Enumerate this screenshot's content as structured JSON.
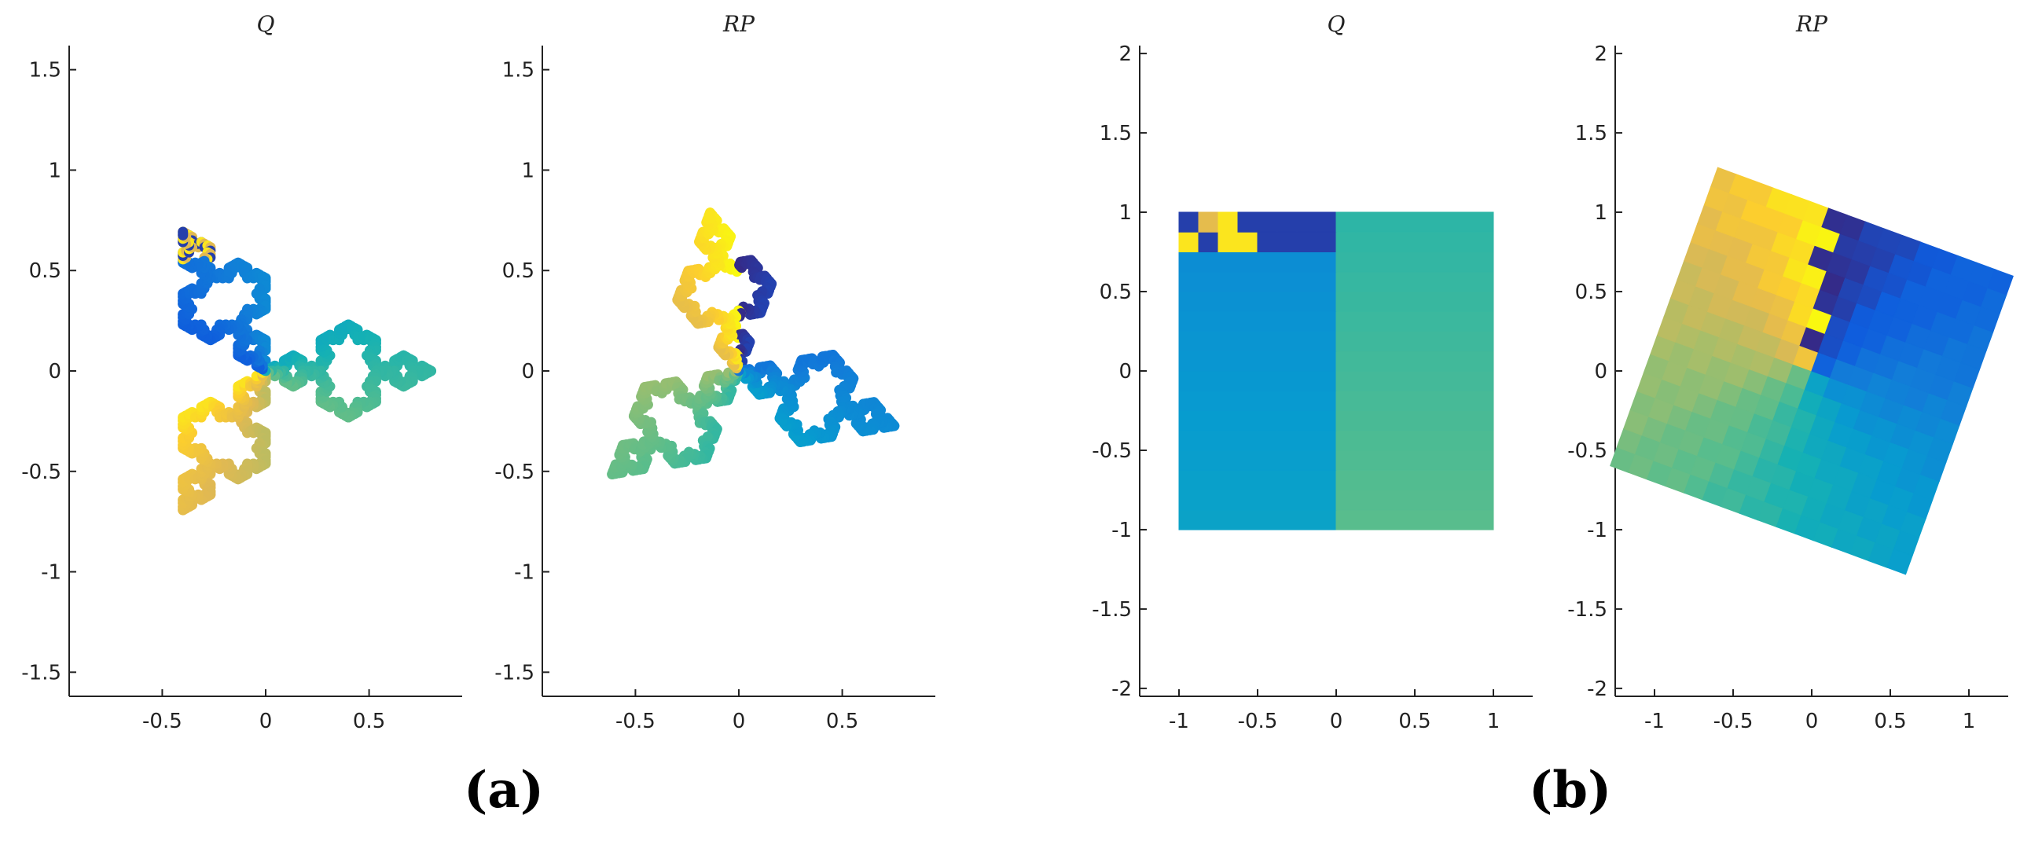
{
  "figure": {
    "captions": [
      "(a)",
      "(b)"
    ]
  },
  "chart_data": [
    {
      "type": "scatter",
      "panel": "a",
      "title": "Q",
      "xlabel": "",
      "ylabel": "",
      "xlim": [
        -0.95,
        0.95
      ],
      "ylim": [
        -1.62,
        1.62
      ],
      "xticks": [
        -0.5,
        0,
        0.5
      ],
      "xtick_labels": [
        "-0.5",
        "0",
        "0.5"
      ],
      "yticks": [
        -1.5,
        -1,
        -0.5,
        0,
        0.5,
        1,
        1.5
      ],
      "ytick_labels": [
        "-1.5",
        "-1",
        "-0.5",
        "0",
        "0.5",
        "1",
        "1.5"
      ],
      "shape": "koch-snowflake",
      "rotation_deg": 0,
      "colormap": "parula",
      "colormap_offset": 0.3,
      "scrambled_top_region": true,
      "grid": false,
      "legend": "none"
    },
    {
      "type": "scatter",
      "panel": "a",
      "title": "RP",
      "xlabel": "",
      "ylabel": "",
      "xlim": [
        -0.95,
        0.95
      ],
      "ylim": [
        -1.62,
        1.62
      ],
      "xticks": [
        -0.5,
        0,
        0.5
      ],
      "xtick_labels": [
        "-0.5",
        "0",
        "0.5"
      ],
      "yticks": [
        -1.5,
        -1,
        -0.5,
        0,
        0.5,
        1,
        1.5
      ],
      "ytick_labels": [
        "-1.5",
        "-1",
        "-0.5",
        "0",
        "0.5",
        "1",
        "1.5"
      ],
      "shape": "koch-snowflake",
      "rotation_deg": -20,
      "colormap": "parula",
      "colormap_offset": 0.0,
      "scrambled_top_region": false,
      "grid": false,
      "legend": "none"
    },
    {
      "type": "heatmap",
      "panel": "b",
      "title": "Q",
      "xlabel": "",
      "ylabel": "",
      "xlim": [
        -1.25,
        1.25
      ],
      "ylim": [
        -2.05,
        2.05
      ],
      "xticks": [
        -1,
        -0.5,
        0,
        0.5,
        1
      ],
      "xtick_labels": [
        "-1",
        "-0.5",
        "0",
        "0.5",
        "1"
      ],
      "yticks": [
        -2,
        -1.5,
        -1,
        -0.5,
        0,
        0.5,
        1,
        1.5,
        2
      ],
      "ytick_labels": [
        "-2",
        "-1.5",
        "-1",
        "-0.5",
        "0",
        "0.5",
        "1",
        "1.5",
        "2"
      ],
      "square_extent": [
        -1,
        1
      ],
      "rotation_deg": 0,
      "grid": false,
      "legend": "none"
    },
    {
      "type": "heatmap",
      "panel": "b",
      "title": "RP",
      "xlabel": "",
      "ylabel": "",
      "xlim": [
        -1.25,
        1.25
      ],
      "ylim": [
        -2.05,
        2.05
      ],
      "xticks": [
        -1,
        -0.5,
        0,
        0.5,
        1
      ],
      "xtick_labels": [
        "-1",
        "-0.5",
        "0",
        "0.5",
        "1"
      ],
      "yticks": [
        -2,
        -1.5,
        -1,
        -0.5,
        0,
        0.5,
        1,
        1.5,
        2
      ],
      "ytick_labels": [
        "-2",
        "-1.5",
        "-1",
        "-0.5",
        "0",
        "0.5",
        "1",
        "1.5",
        "2"
      ],
      "square_extent": [
        -1,
        1
      ],
      "rotation_deg": -20,
      "grid": false,
      "legend": "none"
    }
  ]
}
